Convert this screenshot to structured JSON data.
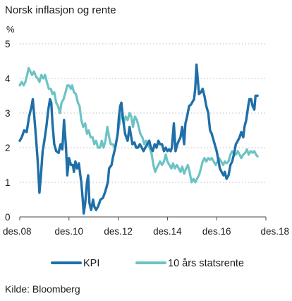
{
  "chart_data": {
    "type": "line",
    "title": "Norsk inflasjon og rente",
    "unit_label": "%",
    "source": "Kilde: Bloomberg",
    "ylim": [
      0,
      5
    ],
    "y_ticks": [
      0,
      1,
      2,
      3,
      4,
      5
    ],
    "xlim": [
      2008.92,
      2018.92
    ],
    "x_ticks": [
      {
        "x": 2008.92,
        "label": "des.08"
      },
      {
        "x": 2010.92,
        "label": "des.10"
      },
      {
        "x": 2012.92,
        "label": "des.12"
      },
      {
        "x": 2014.92,
        "label": "des.14"
      },
      {
        "x": 2016.92,
        "label": "des.16"
      },
      {
        "x": 2018.92,
        "label": "des.18"
      }
    ],
    "grid": true,
    "legend_position": "bottom",
    "series": [
      {
        "name": "KPI",
        "color": "#1f6fa8",
        "points": [
          [
            2008.92,
            2.2
          ],
          [
            2009.0,
            2.3
          ],
          [
            2009.1,
            2.5
          ],
          [
            2009.2,
            2.45
          ],
          [
            2009.3,
            2.9
          ],
          [
            2009.4,
            3.2
          ],
          [
            2009.45,
            3.4
          ],
          [
            2009.5,
            3.0
          ],
          [
            2009.58,
            2.3
          ],
          [
            2009.65,
            1.6
          ],
          [
            2009.72,
            0.7
          ],
          [
            2009.78,
            1.2
          ],
          [
            2009.85,
            1.9
          ],
          [
            2009.92,
            2.2
          ],
          [
            2010.0,
            2.6
          ],
          [
            2010.08,
            3.1
          ],
          [
            2010.15,
            3.4
          ],
          [
            2010.2,
            3.3
          ],
          [
            2010.25,
            2.7
          ],
          [
            2010.32,
            2.1
          ],
          [
            2010.4,
            1.9
          ],
          [
            2010.5,
            1.85
          ],
          [
            2010.58,
            2.1
          ],
          [
            2010.65,
            1.95
          ],
          [
            2010.72,
            2.8
          ],
          [
            2010.8,
            2.0
          ],
          [
            2010.85,
            1.2
          ],
          [
            2010.92,
            1.7
          ],
          [
            2011.0,
            1.5
          ],
          [
            2011.08,
            1.5
          ],
          [
            2011.12,
            1.3
          ],
          [
            2011.18,
            1.6
          ],
          [
            2011.25,
            1.4
          ],
          [
            2011.32,
            1.55
          ],
          [
            2011.38,
            1.2
          ],
          [
            2011.42,
            1.0
          ],
          [
            2011.48,
            0.5
          ],
          [
            2011.52,
            0.1
          ],
          [
            2011.58,
            0.4
          ],
          [
            2011.65,
            1.0
          ],
          [
            2011.7,
            1.2
          ],
          [
            2011.75,
            0.4
          ],
          [
            2011.82,
            0.2
          ],
          [
            2011.9,
            0.5
          ],
          [
            2011.95,
            0.3
          ],
          [
            2012.02,
            0.2
          ],
          [
            2012.1,
            0.3
          ],
          [
            2012.2,
            0.5
          ],
          [
            2012.3,
            0.55
          ],
          [
            2012.4,
            0.75
          ],
          [
            2012.5,
            1.0
          ],
          [
            2012.55,
            1.4
          ],
          [
            2012.65,
            1.5
          ],
          [
            2012.7,
            1.7
          ],
          [
            2012.8,
            2.0
          ],
          [
            2012.9,
            2.4
          ],
          [
            2012.95,
            2.9
          ],
          [
            2013.0,
            3.2
          ],
          [
            2013.05,
            3.3
          ],
          [
            2013.12,
            2.8
          ],
          [
            2013.2,
            2.4
          ],
          [
            2013.3,
            2.2
          ],
          [
            2013.38,
            2.6
          ],
          [
            2013.45,
            2.3
          ],
          [
            2013.5,
            2.1
          ],
          [
            2013.58,
            2.15
          ],
          [
            2013.65,
            2.0
          ],
          [
            2013.72,
            2.0
          ],
          [
            2013.8,
            2.1
          ],
          [
            2013.88,
            2.0
          ],
          [
            2013.95,
            1.9
          ],
          [
            2014.02,
            2.0
          ],
          [
            2014.1,
            2.1
          ],
          [
            2014.18,
            2.2
          ],
          [
            2014.25,
            2.0
          ],
          [
            2014.32,
            1.9
          ],
          [
            2014.4,
            2.1
          ],
          [
            2014.48,
            2.0
          ],
          [
            2014.55,
            2.2
          ],
          [
            2014.62,
            2.1
          ],
          [
            2014.7,
            2.1
          ],
          [
            2014.78,
            1.9
          ],
          [
            2014.85,
            2.0
          ],
          [
            2014.92,
            1.9
          ],
          [
            2014.98,
            1.95
          ],
          [
            2015.05,
            1.9
          ],
          [
            2015.1,
            2.0
          ],
          [
            2015.18,
            2.7
          ],
          [
            2015.25,
            1.9
          ],
          [
            2015.32,
            2.1
          ],
          [
            2015.38,
            2.2
          ],
          [
            2015.45,
            2.3
          ],
          [
            2015.52,
            2.6
          ],
          [
            2015.6,
            2.1
          ],
          [
            2015.65,
            2.7
          ],
          [
            2015.72,
            2.9
          ],
          [
            2015.8,
            3.2
          ],
          [
            2015.88,
            3.25
          ],
          [
            2015.92,
            3.3
          ],
          [
            2016.0,
            3.4
          ],
          [
            2016.05,
            3.7
          ],
          [
            2016.1,
            4.4
          ],
          [
            2016.15,
            4.0
          ],
          [
            2016.2,
            3.55
          ],
          [
            2016.28,
            3.6
          ],
          [
            2016.35,
            3.7
          ],
          [
            2016.42,
            3.5
          ],
          [
            2016.5,
            3.2
          ],
          [
            2016.58,
            3.0
          ],
          [
            2016.65,
            2.5
          ],
          [
            2016.72,
            2.4
          ],
          [
            2016.8,
            2.2
          ],
          [
            2016.88,
            2.0
          ],
          [
            2016.92,
            1.9
          ],
          [
            2017.0,
            1.6
          ],
          [
            2017.05,
            1.4
          ],
          [
            2017.12,
            1.3
          ],
          [
            2017.2,
            1.2
          ],
          [
            2017.25,
            1.3
          ],
          [
            2017.32,
            1.1
          ],
          [
            2017.4,
            1.2
          ],
          [
            2017.48,
            1.5
          ],
          [
            2017.55,
            1.6
          ],
          [
            2017.62,
            1.8
          ],
          [
            2017.7,
            2.1
          ],
          [
            2017.78,
            2.2
          ],
          [
            2017.85,
            2.3
          ],
          [
            2017.92,
            2.45
          ],
          [
            2018.0,
            2.3
          ],
          [
            2018.05,
            2.6
          ],
          [
            2018.12,
            2.8
          ],
          [
            2018.2,
            3.2
          ],
          [
            2018.25,
            3.4
          ],
          [
            2018.32,
            3.4
          ],
          [
            2018.38,
            3.2
          ],
          [
            2018.45,
            3.1
          ],
          [
            2018.5,
            3.5
          ],
          [
            2018.58,
            3.5
          ]
        ]
      },
      {
        "name": "10 års statsrente",
        "color": "#6cc3c4",
        "points": [
          [
            2008.92,
            3.8
          ],
          [
            2009.0,
            3.9
          ],
          [
            2009.08,
            3.8
          ],
          [
            2009.15,
            3.9
          ],
          [
            2009.22,
            4.1
          ],
          [
            2009.28,
            4.3
          ],
          [
            2009.35,
            4.2
          ],
          [
            2009.42,
            4.1
          ],
          [
            2009.5,
            4.2
          ],
          [
            2009.58,
            4.05
          ],
          [
            2009.65,
            4.0
          ],
          [
            2009.72,
            3.9
          ],
          [
            2009.8,
            4.1
          ],
          [
            2009.88,
            4.0
          ],
          [
            2009.95,
            4.1
          ],
          [
            2010.02,
            3.9
          ],
          [
            2010.1,
            3.7
          ],
          [
            2010.18,
            3.7
          ],
          [
            2010.25,
            3.55
          ],
          [
            2010.32,
            3.6
          ],
          [
            2010.4,
            3.3
          ],
          [
            2010.48,
            3.2
          ],
          [
            2010.55,
            3.0
          ],
          [
            2010.62,
            3.3
          ],
          [
            2010.7,
            3.4
          ],
          [
            2010.78,
            3.6
          ],
          [
            2010.85,
            3.8
          ],
          [
            2010.92,
            3.8
          ],
          [
            2011.0,
            3.7
          ],
          [
            2011.05,
            3.8
          ],
          [
            2011.12,
            3.6
          ],
          [
            2011.2,
            3.55
          ],
          [
            2011.28,
            3.3
          ],
          [
            2011.35,
            3.2
          ],
          [
            2011.42,
            2.8
          ],
          [
            2011.5,
            2.6
          ],
          [
            2011.58,
            2.7
          ],
          [
            2011.65,
            2.4
          ],
          [
            2011.72,
            2.5
          ],
          [
            2011.8,
            2.3
          ],
          [
            2011.88,
            2.3
          ],
          [
            2011.95,
            2.1
          ],
          [
            2012.02,
            2.2
          ],
          [
            2012.1,
            2.0
          ],
          [
            2012.18,
            2.0
          ],
          [
            2012.25,
            2.2
          ],
          [
            2012.32,
            2.0
          ],
          [
            2012.4,
            2.2
          ],
          [
            2012.48,
            2.6
          ],
          [
            2012.55,
            2.3
          ],
          [
            2012.62,
            2.1
          ],
          [
            2012.7,
            2.1
          ],
          [
            2012.78,
            2.0
          ],
          [
            2012.85,
            2.2
          ],
          [
            2012.92,
            2.5
          ],
          [
            2013.0,
            2.8
          ],
          [
            2013.08,
            3.0
          ],
          [
            2013.15,
            2.7
          ],
          [
            2013.22,
            2.9
          ],
          [
            2013.3,
            2.8
          ],
          [
            2013.38,
            3.0
          ],
          [
            2013.45,
            2.9
          ],
          [
            2013.52,
            2.6
          ],
          [
            2013.6,
            2.9
          ],
          [
            2013.68,
            2.8
          ],
          [
            2013.75,
            2.6
          ],
          [
            2013.82,
            2.4
          ],
          [
            2013.9,
            2.3
          ],
          [
            2013.98,
            2.1
          ],
          [
            2014.05,
            2.2
          ],
          [
            2014.12,
            2.1
          ],
          [
            2014.2,
            2.0
          ],
          [
            2014.28,
            1.8
          ],
          [
            2014.35,
            1.5
          ],
          [
            2014.42,
            1.3
          ],
          [
            2014.48,
            1.4
          ],
          [
            2014.55,
            1.5
          ],
          [
            2014.62,
            1.6
          ],
          [
            2014.7,
            1.5
          ],
          [
            2014.78,
            1.6
          ],
          [
            2014.85,
            1.8
          ],
          [
            2014.92,
            1.6
          ],
          [
            2015.0,
            1.5
          ],
          [
            2015.08,
            1.4
          ],
          [
            2015.15,
            1.55
          ],
          [
            2015.22,
            1.4
          ],
          [
            2015.3,
            1.5
          ],
          [
            2015.38,
            1.4
          ],
          [
            2015.45,
            1.3
          ],
          [
            2015.52,
            1.45
          ],
          [
            2015.6,
            1.25
          ],
          [
            2015.68,
            1.4
          ],
          [
            2015.75,
            1.5
          ],
          [
            2015.82,
            1.3
          ],
          [
            2015.9,
            1.0
          ],
          [
            2015.98,
            1.1
          ],
          [
            2016.05,
            1.0
          ],
          [
            2016.12,
            1.1
          ],
          [
            2016.2,
            1.2
          ],
          [
            2016.28,
            1.4
          ],
          [
            2016.35,
            1.6
          ],
          [
            2016.42,
            1.7
          ],
          [
            2016.5,
            1.6
          ],
          [
            2016.58,
            1.7
          ],
          [
            2016.65,
            1.65
          ],
          [
            2016.72,
            1.7
          ],
          [
            2016.8,
            1.6
          ],
          [
            2016.88,
            1.5
          ],
          [
            2016.95,
            1.6
          ],
          [
            2017.02,
            1.7
          ],
          [
            2017.1,
            1.6
          ],
          [
            2017.18,
            1.5
          ],
          [
            2017.25,
            1.6
          ],
          [
            2017.32,
            1.55
          ],
          [
            2017.4,
            1.6
          ],
          [
            2017.48,
            1.8
          ],
          [
            2017.55,
            1.9
          ],
          [
            2017.62,
            1.8
          ],
          [
            2017.7,
            1.8
          ],
          [
            2017.78,
            1.9
          ],
          [
            2017.85,
            1.8
          ],
          [
            2017.92,
            1.7
          ],
          [
            2018.0,
            1.8
          ],
          [
            2018.08,
            1.85
          ],
          [
            2018.15,
            1.95
          ],
          [
            2018.22,
            1.8
          ],
          [
            2018.3,
            1.9
          ],
          [
            2018.38,
            1.85
          ],
          [
            2018.45,
            1.9
          ],
          [
            2018.52,
            1.8
          ],
          [
            2018.58,
            1.75
          ]
        ]
      }
    ]
  }
}
